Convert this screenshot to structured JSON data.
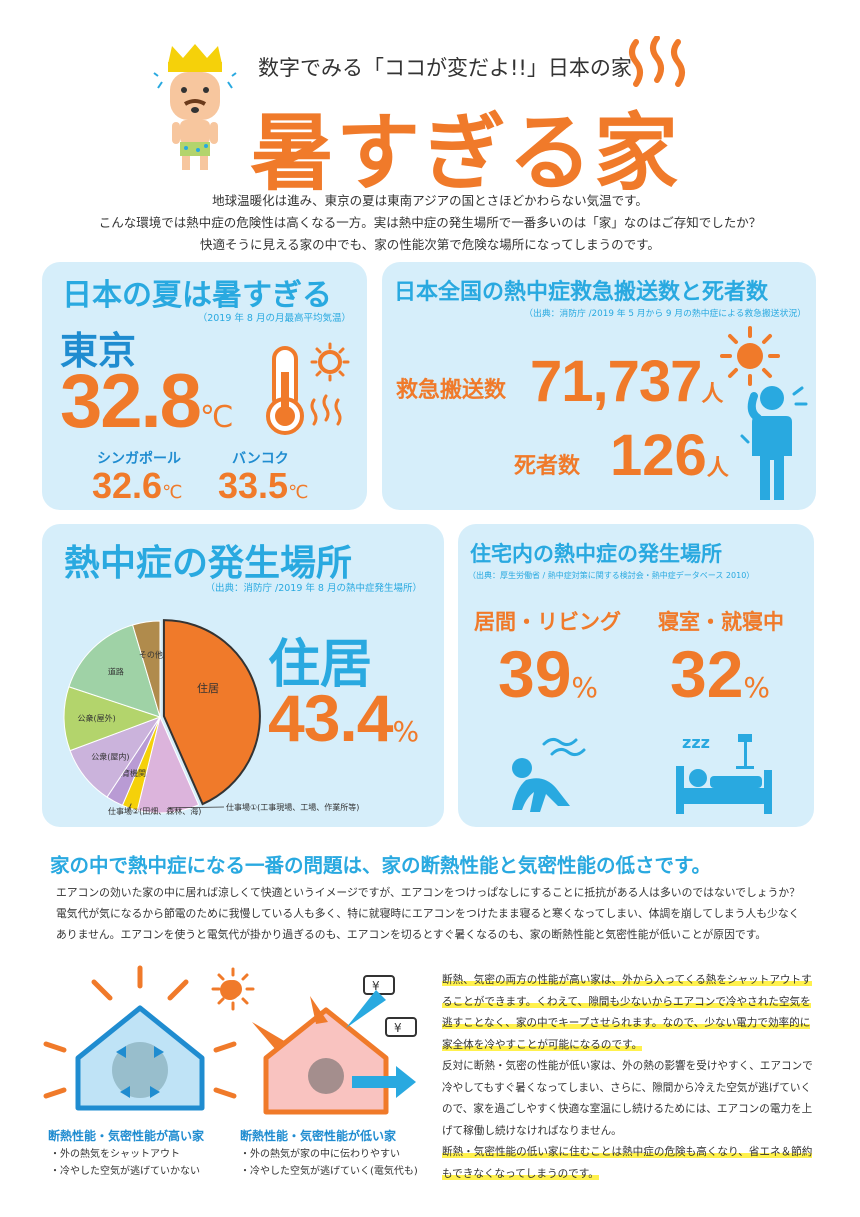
{
  "header": {
    "subtitle": "数字でみる「ココが変だよ!!」日本の家",
    "title": "暑すぎる家",
    "intro": [
      "地球温暖化は進み、東京の夏は東南アジアの国とさほどかわらない気温です。",
      "こんな環境では熱中症の危険性は高くなる一方。実は熱中症の発生場所で一番多いのは「家」なのはご存知でしたか？",
      "快適そうに見える家の中でも、家の性能次第で危険な場所になってしまうのです。"
    ]
  },
  "summer": {
    "title": "日本の夏は暑すぎる",
    "source": "（2019 年 8 月の月最高平均気温）",
    "city": "東京",
    "value": "32.8",
    "unit": "℃",
    "others": [
      {
        "city": "シンガポール",
        "value": "32.6",
        "unit": "℃"
      },
      {
        "city": "バンコク",
        "value": "33.5",
        "unit": "℃"
      }
    ]
  },
  "transport": {
    "title": "日本全国の熱中症救急搬送数と死者数",
    "source": "（出典：消防庁 /2019 年 5 月から 9 月の熱中症による救急搬送状況）",
    "rows": [
      {
        "label": "救急搬送数",
        "value": "71,737",
        "unit": "人"
      },
      {
        "label": "死者数",
        "value": "126",
        "unit": "人"
      }
    ]
  },
  "places": {
    "title": "熱中症の発生場所",
    "source": "（出典：消防庁 /2019 年 8 月の熱中症発生場所）",
    "highlight_label": "住居",
    "highlight_value": "43.4",
    "highlight_unit": "%"
  },
  "chart_data": {
    "type": "pie",
    "slices": [
      {
        "label": "住居",
        "value": 43.4,
        "color": "#f07a2a"
      },
      {
        "label": "仕事場①(工事現場、工場、作業所等)",
        "value": 10.4,
        "color": "#dcb4dc"
      },
      {
        "label": "仕事場②(田畑、森林、海)",
        "value": 2.6,
        "color": "#f5d10a"
      },
      {
        "label": "教育機関",
        "value": 2.9,
        "color": "#b99bd4"
      },
      {
        "label": "公衆(屋内)",
        "value": 10.0,
        "color": "#cbb3dc"
      },
      {
        "label": "公衆(屋外)",
        "value": 10.8,
        "color": "#b3d46c"
      },
      {
        "label": "道路",
        "value": 15.3,
        "color": "#9fd2a6"
      },
      {
        "label": "その他",
        "value": 4.6,
        "color": "#b08b4c"
      }
    ]
  },
  "home": {
    "title": "住宅内の熱中症の発生場所",
    "source": "（出典：厚生労働省 / 熱中症対策に関する検討会・熱中症データベース 2010）",
    "items": [
      {
        "label": "居間・リビング",
        "value": "39",
        "unit": "%"
      },
      {
        "label": "寝室・就寝中",
        "value": "32",
        "unit": "%"
      }
    ]
  },
  "problem": {
    "heading": "家の中で熱中症になる一番の問題は、家の断熱性能と気密性能の低さです。",
    "body": [
      "エアコンの効いた家の中に居れば涼しくて快適というイメージですが、エアコンをつけっぱなしにすることに抵抗がある人は多いのではないでしょうか？",
      "電気代が気になるから節電のために我慢している人も多く、特に就寝時にエアコンをつけたまま寝ると寒くなってしまい、体調を崩してしまう人も少なく",
      "ありません。エアコンを使うと電気代が掛かり過ぎるのも、エアコンを切るとすぐ暑くなるのも、家の断熱性能と気密性能が低いことが原因です。"
    ]
  },
  "houses": [
    {
      "title": "断熱性能・気密性能が高い家",
      "points": [
        "・外の熱気をシャットアウト",
        "・冷やした空気が逃げていかない"
      ]
    },
    {
      "title": "断熱性能・気密性能が低い家",
      "points": [
        "・外の熱気が家の中に伝わりやすい",
        "・冷やした空気が逃げていく(電気代も)"
      ]
    }
  ],
  "explain": {
    "p1": [
      "断熱、気密の両方の性能が高い家は、外から入ってくる熱をシャットアウトす",
      "ることができます。くわえて、隙間も少ないからエアコンで冷やされた空気を",
      "逃すことなく、家の中でキープさせられます。なので、少ない電力で効率的に",
      "家全体を冷やすことが可能になるのです。"
    ],
    "p2": [
      "反対に断熱・気密の性能が低い家は、外の熱の影響を受けやすく、エアコンで",
      "冷やしてもすぐ暑くなってしまい、さらに、隙間から冷えた空気が逃げていく",
      "ので、家を過ごしやすく快適な室温にし続けるためには、エアコンの電力を上",
      "げて稼働し続けなければなりません。"
    ],
    "p3": [
      "断熱・気密性能の低い家に住むことは熱中症の危険も高くなり、省エネ＆節約",
      "もできなくなってしまうのです。"
    ]
  },
  "colors": {
    "orange": "#f07a2a",
    "blue": "#29a9e0",
    "card": "#d6eefa"
  }
}
